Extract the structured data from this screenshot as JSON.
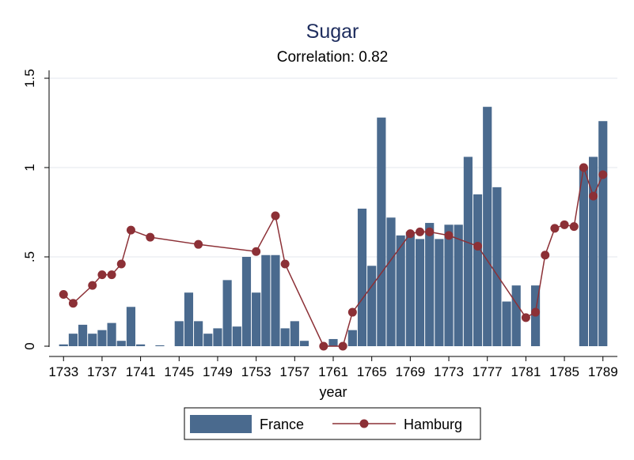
{
  "chart_data": {
    "type": "bar",
    "title": "Sugar",
    "subtitle": "Correlation: 0.82",
    "xlabel": "year",
    "ylabel": "",
    "xlim": [
      1731.5,
      1790.5
    ],
    "ylim": [
      0,
      1.5
    ],
    "x_ticks": [
      "1733",
      "1737",
      "1741",
      "1745",
      "1749",
      "1753",
      "1757",
      "1761",
      "1765",
      "1769",
      "1773",
      "1777",
      "1781",
      "1785",
      "1789"
    ],
    "y_ticks": [
      "0",
      ".5",
      "1",
      "1.5"
    ],
    "grid": "horizontal",
    "colors": {
      "bar": "#4a6a8e",
      "line": "#8c3036",
      "title": "#1e2d5e",
      "grid": "#e3e7ec"
    },
    "series": [
      {
        "name": "France",
        "type": "bar",
        "x": [
          1733,
          1734,
          1735,
          1736,
          1737,
          1738,
          1739,
          1740,
          1741,
          1743,
          1745,
          1746,
          1747,
          1748,
          1749,
          1750,
          1751,
          1752,
          1753,
          1754,
          1755,
          1756,
          1757,
          1758,
          1761,
          1763,
          1764,
          1765,
          1766,
          1767,
          1768,
          1769,
          1770,
          1771,
          1772,
          1773,
          1774,
          1775,
          1776,
          1777,
          1778,
          1779,
          1780,
          1782,
          1787,
          1788,
          1789
        ],
        "values": [
          0.01,
          0.07,
          0.12,
          0.07,
          0.09,
          0.13,
          0.03,
          0.22,
          0.01,
          0.005,
          0.14,
          0.3,
          0.14,
          0.07,
          0.1,
          0.37,
          0.11,
          0.5,
          0.3,
          0.51,
          0.51,
          0.1,
          0.14,
          0.03,
          0.04,
          0.09,
          0.77,
          0.45,
          1.28,
          0.72,
          0.62,
          0.64,
          0.6,
          0.69,
          0.6,
          0.68,
          0.68,
          1.06,
          0.85,
          1.34,
          0.89,
          0.25,
          0.34,
          0.34,
          1.0,
          1.06,
          1.26
        ]
      },
      {
        "name": "Hamburg",
        "type": "line",
        "x": [
          1733,
          1734,
          1736,
          1737,
          1738,
          1739,
          1740,
          1742,
          1747,
          1753,
          1755,
          1756,
          1760,
          1762,
          1763,
          1769,
          1770,
          1771,
          1773,
          1776,
          1781,
          1782,
          1783,
          1784,
          1785,
          1786,
          1787,
          1788,
          1789
        ],
        "values": [
          0.29,
          0.24,
          0.34,
          0.4,
          0.4,
          0.46,
          0.65,
          0.61,
          0.57,
          0.53,
          0.73,
          0.46,
          0.0,
          0.0,
          0.19,
          0.63,
          0.64,
          0.64,
          0.62,
          0.56,
          0.16,
          0.19,
          0.51,
          0.66,
          0.68,
          0.67,
          1.0,
          0.84,
          0.96
        ]
      }
    ]
  }
}
